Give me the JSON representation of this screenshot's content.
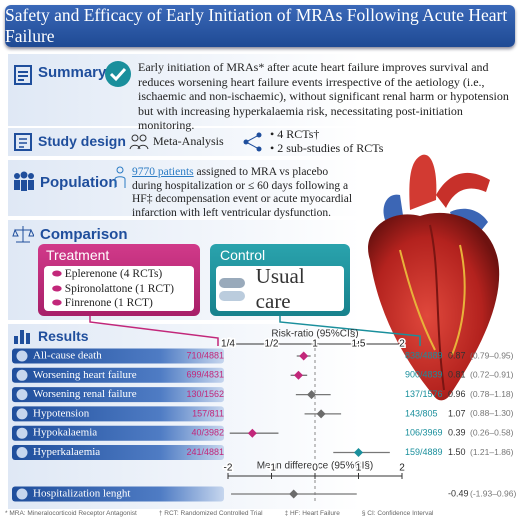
{
  "header": {
    "title": "Safety and Efficacy of Early Initiation of MRAs Following Acute Heart Failure"
  },
  "summary": {
    "label": "Summary",
    "text": "Early initiation of MRAs* after acute heart failure improves survival and reduces worsening heart failure events irrespective of the aetiology (i.e., ischaemic and non-ischaemic), without significant renal harm or hypotension but with increasing hyperkalaemia risk, necessitating post-initiation monitoring."
  },
  "study_design": {
    "label": "Study design",
    "method": "Meta-Analysis",
    "items": [
      "4 RCTs†",
      "2 sub-studies of RCTs"
    ]
  },
  "population": {
    "label": "Population",
    "highlight": "9770 patients",
    "text": " assigned to MRA vs placebo during hospitalization or ≤ 60 days following a HF‡ decompensation event or acute myocardial infarction with left ventricular dysfunction."
  },
  "comparison": {
    "label": "Comparison",
    "treatment": {
      "label": "Treatment",
      "items": [
        "Eplerenone (4 RCTs)",
        "Spironolattone (1 RCT)",
        "Finrenone (1 RCT)"
      ]
    },
    "control": {
      "label": "Control",
      "text": "Usual care"
    }
  },
  "results": {
    "label": "Results"
  },
  "chart_data": [
    {
      "type": "forest",
      "title": "Risk-ratio (95%CI§)",
      "categories": [
        "All-cause death",
        "Worsening heart failure",
        "Worsening renal failure",
        "Hypotension",
        "Hypokalaemia",
        "Hyperkalaemia"
      ],
      "mra_events": [
        "710/4881",
        "699/4831",
        "130/1562",
        "157/811",
        "40/3982",
        "241/4881"
      ],
      "control_events": [
        "838/4889",
        "900/4839",
        "137/1576",
        "143/805",
        "106/3969",
        "159/4889"
      ],
      "values": [
        0.87,
        0.81,
        0.96,
        1.07,
        0.39,
        1.5
      ],
      "value_labels": [
        "0.87",
        "0.81",
        "0.96",
        "1.07",
        "0.39",
        "1.50"
      ],
      "ci_lower": [
        0.79,
        0.72,
        0.78,
        0.88,
        0.26,
        1.21
      ],
      "ci_upper": [
        0.95,
        0.91,
        1.18,
        1.3,
        0.58,
        1.86
      ],
      "ci_labels": [
        "(0.79–0.95)",
        "(0.72–0.91)",
        "(0.78–1.18)",
        "(0.88–1.30)",
        "(0.26–0.58)",
        "(1.21–1.86)"
      ],
      "point_colors": [
        "#c2277a",
        "#c2277a",
        "#6b6b6b",
        "#6b6b6b",
        "#c2277a",
        "#1a8f9c"
      ],
      "xlim": [
        0.25,
        2
      ],
      "xticks": [
        {
          "value": 0.25,
          "label": "1/4"
        },
        {
          "value": 0.5,
          "label": "1/2"
        },
        1,
        1.5,
        2
      ],
      "reference_line": 1
    },
    {
      "type": "forest",
      "title": "Mean difference (95%CI§)",
      "categories": [
        "Hospitalization lenght"
      ],
      "values": [
        -0.49
      ],
      "ci_lower": [
        -1.93
      ],
      "ci_upper": [
        0.96
      ],
      "ci_labels": [
        "(-1.93–0.96)"
      ],
      "point_colors": [
        "#6b6b6b"
      ],
      "xlim": [
        -2,
        2
      ],
      "xticks": [
        -2,
        -1,
        0,
        1,
        2
      ],
      "reference_line": 0
    }
  ],
  "footnotes": [
    "* MRA: Mineralocorticoid Receptor Antagonist",
    "† RCT: Randomized Controlled Trial",
    "‡ HF: Heart Failure",
    "§ CI: Confidence Interval"
  ]
}
